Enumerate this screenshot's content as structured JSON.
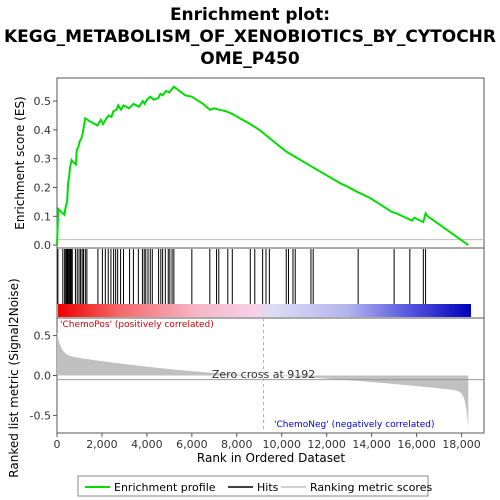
{
  "chart_data": {
    "type": "line",
    "title_line1": "Enrichment plot:",
    "title_line2": "KEGG_METABOLISM_OF_XENOBIOTICS_BY_CYTOCHR",
    "title_line3": "OME_P450",
    "ylabel_top": "Enrichment score (ES)",
    "ylabel_bottom": "Ranked list metric (Signal2Noise)",
    "xlabel": "Rank in Ordered Dataset",
    "x_ticks": [
      "0",
      "2,000",
      "4,000",
      "6,000",
      "8,000",
      "10,000",
      "12,000",
      "14,000",
      "16,000",
      "18,000"
    ],
    "x_tick_values": [
      0,
      2000,
      4000,
      6000,
      8000,
      10000,
      12000,
      14000,
      16000,
      18000
    ],
    "xlim": [
      0,
      19000
    ],
    "es_y_ticks": [
      "0.0",
      "0.1",
      "0.2",
      "0.3",
      "0.4",
      "0.5"
    ],
    "es_y_tick_values": [
      0.0,
      0.1,
      0.2,
      0.3,
      0.4,
      0.5
    ],
    "es_ylim": [
      -0.01,
      0.58
    ],
    "metric_y_ticks": [
      "-0.5",
      "0.0",
      "0.5"
    ],
    "metric_y_tick_values": [
      -0.5,
      0.0,
      0.5
    ],
    "metric_ylim": [
      -0.72,
      0.72
    ],
    "zero_cross_label": "Zero cross at 9192",
    "zero_cross": 9192,
    "n_total": 18300,
    "pos_label": "'ChemoPos' (positively correlated)",
    "neg_label": "'ChemoNeg' (negatively correlated)",
    "legend": [
      "Enrichment profile",
      "Hits",
      "Ranking metric scores"
    ],
    "colors": {
      "es_line": "#00dd00",
      "hits": "#000000",
      "metric_fill": "#c0c0c0",
      "pos_label": "#cc0000",
      "neg_label": "#0000cc",
      "zero_line": "#999999"
    },
    "series": [
      {
        "name": "Enrichment profile",
        "x": [
          0,
          60,
          120,
          330,
          390,
          450,
          500,
          540,
          580,
          650,
          700,
          840,
          880,
          950,
          1010,
          1080,
          1120,
          1180,
          1260,
          1450,
          1800,
          1950,
          2050,
          2200,
          2300,
          2420,
          2510,
          2650,
          2720,
          2850,
          2960,
          3200,
          3400,
          3650,
          3820,
          3900,
          4000,
          4150,
          4300,
          4500,
          4600,
          4700,
          4850,
          5000,
          5150,
          5200,
          5450,
          5700,
          6000,
          6100,
          6500,
          6800,
          7000,
          7200,
          7500,
          7800,
          8600,
          9000,
          10200,
          11500,
          12600,
          13000,
          13350,
          13900,
          14500,
          14900,
          15100,
          15800,
          15900,
          16300,
          16400,
          16500,
          18300
        ],
        "y": [
          0.0,
          0.125,
          0.12,
          0.105,
          0.135,
          0.15,
          0.22,
          0.235,
          0.27,
          0.295,
          0.29,
          0.28,
          0.33,
          0.34,
          0.36,
          0.37,
          0.38,
          0.405,
          0.44,
          0.43,
          0.415,
          0.435,
          0.42,
          0.44,
          0.45,
          0.445,
          0.465,
          0.47,
          0.485,
          0.47,
          0.485,
          0.475,
          0.49,
          0.48,
          0.5,
          0.49,
          0.505,
          0.515,
          0.505,
          0.51,
          0.525,
          0.52,
          0.535,
          0.53,
          0.545,
          0.55,
          0.535,
          0.52,
          0.515,
          0.51,
          0.49,
          0.47,
          0.475,
          0.47,
          0.465,
          0.455,
          0.42,
          0.4,
          0.325,
          0.265,
          0.215,
          0.2,
          0.185,
          0.165,
          0.135,
          0.115,
          0.11,
          0.085,
          0.095,
          0.08,
          0.11,
          0.1,
          0.0
        ]
      }
    ],
    "hits": [
      40,
      260,
      340,
      390,
      420,
      450,
      480,
      520,
      560,
      600,
      640,
      680,
      820,
      900,
      980,
      1050,
      1120,
      1180,
      1260,
      1330,
      1820,
      2020,
      2150,
      2280,
      2400,
      2520,
      2610,
      2700,
      2830,
      2960,
      3230,
      3400,
      3620,
      3800,
      3880,
      3950,
      4050,
      4150,
      4240,
      4520,
      4620,
      4700,
      4820,
      4950,
      5020,
      5120,
      5200,
      6000,
      6800,
      7100,
      7200,
      7600,
      7800,
      8600,
      8800,
      9150,
      9300,
      9450,
      10200,
      10300,
      10500,
      10600,
      11300,
      11400,
      13400,
      15000,
      15700,
      16300,
      16400
    ]
  }
}
